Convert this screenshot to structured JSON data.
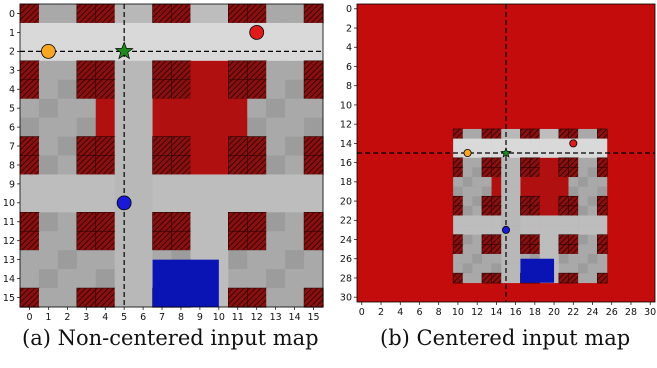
{
  "panel_a": {
    "caption": "(a) Non-centered input map",
    "size": 16,
    "xticks": [
      0,
      1,
      2,
      3,
      4,
      5,
      6,
      7,
      8,
      9,
      10,
      11,
      12,
      13,
      14,
      15
    ],
    "yticks": [
      0,
      1,
      2,
      3,
      4,
      5,
      6,
      7,
      8,
      9,
      10,
      11,
      12,
      13,
      14,
      15
    ],
    "crosshair": [
      5,
      2
    ],
    "agents": [
      {
        "name": "orange-agent",
        "x": 1,
        "y": 2,
        "color": "#f5a623"
      },
      {
        "name": "red-agent",
        "x": 12,
        "y": 1,
        "color": "#e01b1b"
      },
      {
        "name": "blue-agent",
        "x": 5,
        "y": 10,
        "color": "#1a1ad6"
      }
    ],
    "goal": {
      "x": 5,
      "y": 2,
      "color": "#1f8a1f"
    }
  },
  "panel_b": {
    "caption": "(b) Centered input map",
    "size": 31,
    "xticks": [
      0,
      2,
      4,
      6,
      8,
      10,
      12,
      14,
      16,
      18,
      20,
      22,
      24,
      26,
      28,
      30
    ],
    "yticks": [
      0,
      2,
      4,
      6,
      8,
      10,
      12,
      14,
      16,
      18,
      20,
      22,
      24,
      26,
      28,
      30
    ],
    "crosshair": [
      15,
      15
    ],
    "offset": [
      10,
      13
    ],
    "background": "#c40c0c"
  },
  "colors": {
    "obstacle": "#7a1212",
    "corridor": "#d9d9d9",
    "free": "#a9a9a9",
    "heat": "#b01010",
    "zone": "#0a14b4"
  }
}
